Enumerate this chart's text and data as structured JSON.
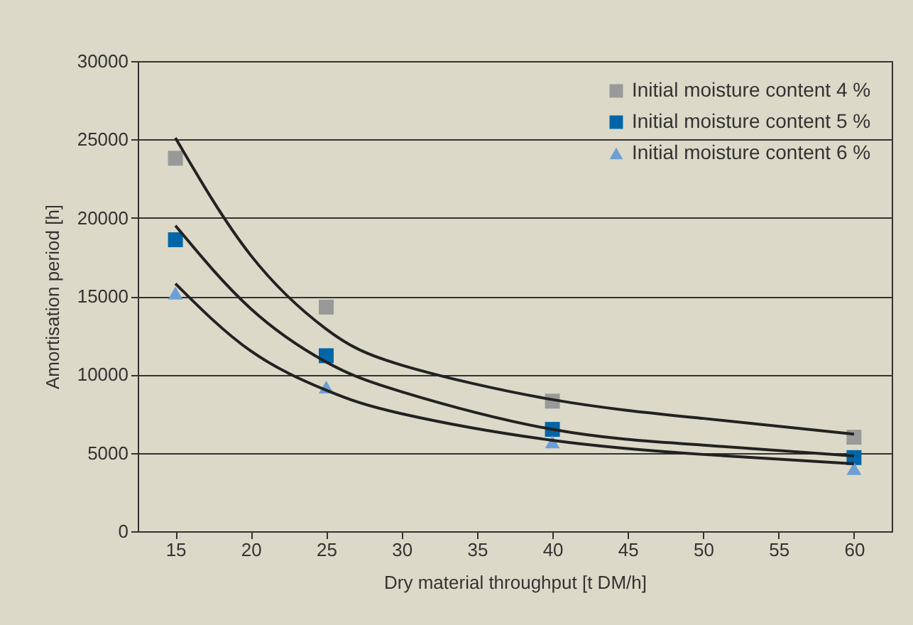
{
  "chart_data": {
    "type": "scatter",
    "xlabel": "Dry material throughput [t DM/h]",
    "ylabel": "Amortisation period [h]",
    "xlim": [
      12.5,
      62.5
    ],
    "xticks": [
      15,
      20,
      25,
      30,
      35,
      40,
      45,
      50,
      55,
      60
    ],
    "ylim": [
      0,
      30000
    ],
    "yticks": [
      0,
      5000,
      10000,
      15000,
      20000,
      25000,
      30000
    ],
    "grid": "y",
    "legend": "top right",
    "series": [
      {
        "name": "Initial moisture content 4 %",
        "color": "#999999",
        "marker": "square",
        "x": [
          15,
          25,
          40,
          60
        ],
        "values": [
          23800,
          14300,
          8300,
          6000
        ]
      },
      {
        "name": "Initial moisture content 5 %",
        "color": "#0066a8",
        "marker": "square",
        "x": [
          15,
          25,
          40,
          60
        ],
        "values": [
          18600,
          11200,
          6500,
          4700
        ]
      },
      {
        "name": "Initial moisture content 6 %",
        "color": "#6e9fd4",
        "marker": "triangle",
        "x": [
          15,
          25,
          40,
          60
        ],
        "values": [
          15200,
          9200,
          5700,
          4000
        ]
      },
      {
        "type": "line",
        "color": "#222222",
        "x": [
          15,
          20,
          25,
          30,
          40,
          50,
          60
        ],
        "values": [
          25100,
          17600,
          12900,
          10600,
          8400,
          7200,
          6200
        ]
      },
      {
        "type": "line",
        "color": "#222222",
        "x": [
          15,
          20,
          25,
          30,
          40,
          50,
          60
        ],
        "values": [
          19500,
          14200,
          10800,
          8900,
          6500,
          5500,
          4800
        ]
      },
      {
        "type": "line",
        "color": "#222222",
        "x": [
          15,
          20,
          25,
          30,
          40,
          50,
          60
        ],
        "values": [
          15800,
          11500,
          9000,
          7500,
          5800,
          4900,
          4300
        ]
      }
    ]
  }
}
